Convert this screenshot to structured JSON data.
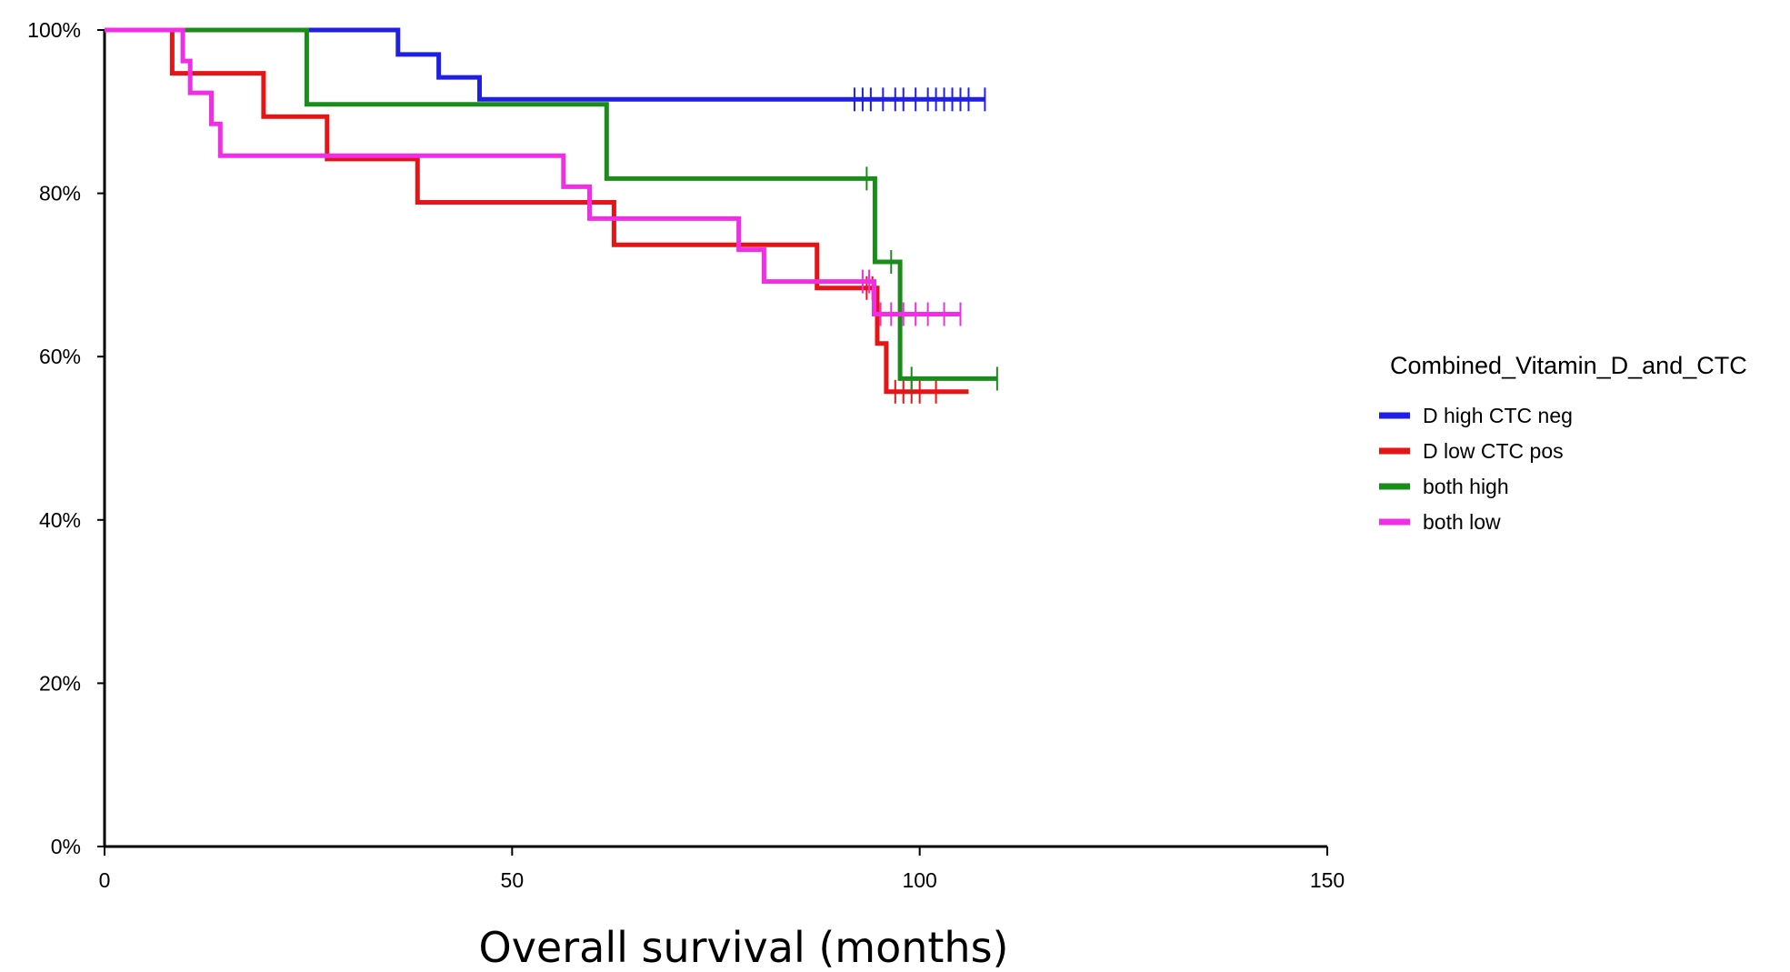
{
  "chart_data": {
    "type": "line",
    "title": "",
    "xlabel": "Overall survival (months)",
    "ylabel": "",
    "xlim": [
      0,
      150
    ],
    "ylim": [
      0,
      100
    ],
    "x_ticks": [
      0,
      50,
      100,
      150
    ],
    "x_tick_labels": [
      "0",
      "50",
      "100",
      "150"
    ],
    "y_ticks": [
      0,
      20,
      40,
      60,
      80,
      100
    ],
    "y_tick_labels": [
      "0%",
      "20%",
      "40%",
      "60%",
      "80%",
      "100%"
    ],
    "grid": false,
    "legend": {
      "title": "Combined_Vitamin_D_and_CTC",
      "position": "right"
    },
    "series": [
      {
        "name": "D high CTC neg",
        "color": "#1f1fe6",
        "steps": [
          [
            0,
            100
          ],
          [
            36,
            100
          ],
          [
            36,
            97
          ],
          [
            41,
            97
          ],
          [
            41,
            94.2
          ],
          [
            46,
            94.2
          ],
          [
            46,
            91.5
          ],
          [
            108,
            91.5
          ]
        ],
        "censor_times": [
          92,
          93,
          94,
          95.5,
          97,
          98,
          99.5,
          101,
          102,
          103,
          104,
          105,
          106,
          108
        ]
      },
      {
        "name": "D low CTC pos",
        "color": "#e61414",
        "steps": [
          [
            0,
            100
          ],
          [
            8.3,
            100
          ],
          [
            8.3,
            94.7
          ],
          [
            19.5,
            94.7
          ],
          [
            19.5,
            89.4
          ],
          [
            27.3,
            89.4
          ],
          [
            27.3,
            84.2
          ],
          [
            38.4,
            84.2
          ],
          [
            38.4,
            78.9
          ],
          [
            62.5,
            78.9
          ],
          [
            62.5,
            73.7
          ],
          [
            87.4,
            73.7
          ],
          [
            87.4,
            68.4
          ],
          [
            94.8,
            68.4
          ],
          [
            94.8,
            61.6
          ],
          [
            95.9,
            61.6
          ],
          [
            95.9,
            55.7
          ],
          [
            106,
            55.7
          ]
        ],
        "censor_times": [
          93.5,
          94.2,
          97,
          98,
          99,
          100,
          102
        ]
      },
      {
        "name": "both high",
        "color": "#1a8c1a",
        "steps": [
          [
            0,
            100
          ],
          [
            24.8,
            100
          ],
          [
            24.8,
            90.9
          ],
          [
            61.6,
            90.9
          ],
          [
            61.6,
            81.8
          ],
          [
            94.5,
            81.8
          ],
          [
            94.5,
            71.6
          ],
          [
            97.6,
            71.6
          ],
          [
            97.6,
            57.3
          ],
          [
            109.5,
            57.3
          ]
        ],
        "censor_times": [
          93.5,
          96.5,
          99,
          109.5
        ]
      },
      {
        "name": "both low",
        "color": "#f02ee6",
        "steps": [
          [
            0,
            100
          ],
          [
            9.6,
            100
          ],
          [
            9.6,
            96.2
          ],
          [
            10.5,
            96.2
          ],
          [
            10.5,
            92.3
          ],
          [
            13.1,
            92.3
          ],
          [
            13.1,
            88.5
          ],
          [
            14.2,
            88.5
          ],
          [
            14.2,
            84.6
          ],
          [
            56.3,
            84.6
          ],
          [
            56.3,
            80.8
          ],
          [
            59.5,
            80.8
          ],
          [
            59.5,
            76.9
          ],
          [
            77.8,
            76.9
          ],
          [
            77.8,
            73.1
          ],
          [
            80.9,
            73.1
          ],
          [
            80.9,
            69.2
          ],
          [
            94.4,
            69.2
          ],
          [
            94.4,
            65.2
          ],
          [
            105,
            65.2
          ]
        ],
        "censor_times": [
          93,
          93.8,
          95.2,
          96.5,
          98,
          99.5,
          101,
          103,
          105
        ]
      }
    ]
  }
}
